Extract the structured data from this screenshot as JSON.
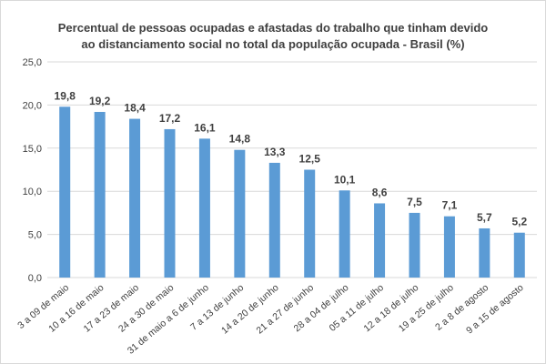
{
  "chart_data": {
    "type": "bar",
    "title_line1": "Percentual de pessoas ocupadas e afastadas do trabalho que tinham devido",
    "title_line2": "ao distanciamento social no total da população ocupada - Brasil (%)",
    "categories": [
      "3 a 09 de maio",
      "10 a 16 de maio",
      "17 a 23 de maio",
      "24 a 30 de maio",
      "31 de maio a 6 de junho",
      "7 a 13 de junho",
      "14 a 20 de junho",
      "21 a 27 de junho",
      "28 a 04 de julho",
      "05 a 11 de julho",
      "12 a 18 de julho",
      "19 a 25 de julho",
      "2 a 8 de agosto",
      "9 a 15 de agosto"
    ],
    "values": [
      19.8,
      19.2,
      18.4,
      17.2,
      16.1,
      14.8,
      13.3,
      12.5,
      10.1,
      8.6,
      7.5,
      7.1,
      5.7,
      5.2
    ],
    "value_labels": [
      "19,8",
      "19,2",
      "18,4",
      "17,2",
      "16,1",
      "14,8",
      "13,3",
      "12,5",
      "10,1",
      "8,6",
      "7,5",
      "7,1",
      "5,7",
      "5,2"
    ],
    "yticks": [
      0,
      5,
      10,
      15,
      20,
      25
    ],
    "ytick_labels": [
      "0,0",
      "5,0",
      "10,0",
      "15,0",
      "20,0",
      "25,0"
    ],
    "ylim": [
      0,
      25
    ],
    "xlabel": "",
    "ylabel": "",
    "grid": true,
    "bar_color": "#5b9bd5",
    "grid_color": "#d9d9d9"
  }
}
